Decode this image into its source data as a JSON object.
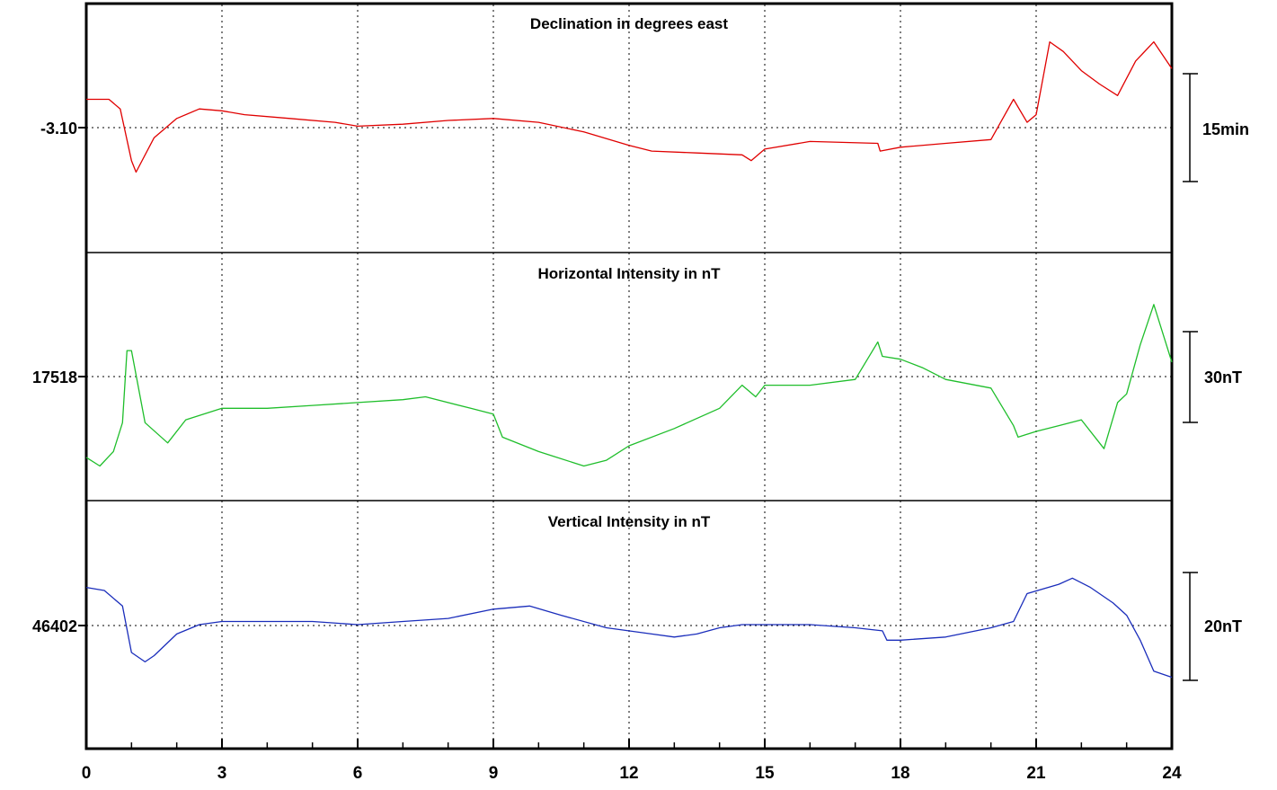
{
  "chart_data": [
    {
      "type": "line",
      "title": "Declination in degrees east",
      "baseline_label": "-3.10",
      "scale_label": "15min",
      "color": "#e00000",
      "x": [
        0,
        0.5,
        0.75,
        1.0,
        1.1,
        1.5,
        2.0,
        2.5,
        3.0,
        3.5,
        4.5,
        5.5,
        6.0,
        7.0,
        8.0,
        9.0,
        10.0,
        11.0,
        12.0,
        12.5,
        13.5,
        14.5,
        14.7,
        15.0,
        16.0,
        17.5,
        17.55,
        18.0,
        19.0,
        20.0,
        20.5,
        20.8,
        21.0,
        21.3,
        21.6,
        22.0,
        22.4,
        22.8,
        23.2,
        23.6,
        24.0
      ],
      "y": [
        -3.08,
        -3.08,
        -3.085,
        -3.112,
        -3.118,
        -3.1,
        -3.09,
        -3.085,
        -3.086,
        -3.088,
        -3.09,
        -3.092,
        -3.094,
        -3.093,
        -3.091,
        -3.09,
        -3.092,
        -3.097,
        -3.104,
        -3.107,
        -3.108,
        -3.109,
        -3.112,
        -3.106,
        -3.102,
        -3.103,
        -3.107,
        -3.105,
        -3.103,
        -3.101,
        -3.08,
        -3.092,
        -3.088,
        -3.05,
        -3.055,
        -3.065,
        -3.072,
        -3.078,
        -3.06,
        -3.05,
        -3.064
      ],
      "ylim": [
        -3.16,
        -3.03
      ]
    },
    {
      "type": "line",
      "title": "Horizontal Intensity in nT",
      "baseline_label": "17518",
      "scale_label": "30nT",
      "color": "#1fbe2b",
      "x": [
        0,
        0.3,
        0.6,
        0.8,
        0.9,
        1.0,
        1.3,
        1.8,
        2.2,
        3.0,
        4.0,
        5.0,
        6.0,
        7.0,
        7.5,
        8.5,
        9.0,
        9.2,
        10.0,
        11.0,
        11.5,
        12.0,
        13.0,
        14.0,
        14.5,
        14.8,
        15.0,
        16.0,
        17.0,
        17.5,
        17.6,
        18.0,
        18.5,
        19.0,
        20.0,
        20.5,
        20.6,
        21.0,
        21.5,
        22.0,
        22.5,
        22.8,
        23.0,
        23.3,
        23.6,
        24.0
      ],
      "y": [
        17493,
        17490,
        17495,
        17505,
        17530,
        17530,
        17505,
        17498,
        17506,
        17510,
        17510,
        17511,
        17512,
        17513,
        17514,
        17510,
        17508,
        17500,
        17495,
        17490,
        17492,
        17497,
        17503,
        17510,
        17518,
        17514,
        17518,
        17518,
        17520,
        17533,
        17528,
        17527,
        17524,
        17520,
        17517,
        17504,
        17500,
        17502,
        17504,
        17506,
        17496,
        17512,
        17515,
        17532,
        17546,
        17526
      ],
      "ylim": [
        17478,
        17564
      ]
    },
    {
      "type": "line",
      "title": "Vertical Intensity in nT",
      "baseline_label": "46402",
      "scale_label": "20nT",
      "color": "#1a2dbb",
      "x": [
        0,
        0.4,
        0.8,
        1.0,
        1.3,
        1.5,
        2.0,
        2.5,
        3.0,
        4.0,
        5.0,
        6.0,
        7.0,
        8.0,
        9.0,
        9.8,
        10.5,
        11.5,
        12.5,
        13.0,
        13.5,
        14.0,
        14.5,
        15.0,
        16.0,
        17.0,
        17.6,
        17.7,
        18.0,
        19.0,
        20.0,
        20.5,
        20.8,
        21.5,
        21.8,
        22.2,
        22.7,
        23.0,
        23.3,
        23.6,
        24.0
      ],
      "y": [
        46422,
        46421,
        46416,
        46401,
        46398,
        46400,
        46407,
        46410,
        46411,
        46411,
        46411,
        46410,
        46411,
        46412,
        46415,
        46416,
        46413,
        46409,
        46407,
        46406,
        46407,
        46409,
        46410,
        46410,
        46410,
        46409,
        46408,
        46405,
        46405,
        46406,
        46409,
        46411,
        46420,
        46423,
        46425,
        46422,
        46417,
        46413,
        46405,
        46395,
        46393
      ],
      "ylim": [
        46370,
        46450
      ]
    }
  ],
  "x_ticks": [
    "0",
    "3",
    "6",
    "9",
    "12",
    "15",
    "18",
    "21",
    "24"
  ]
}
